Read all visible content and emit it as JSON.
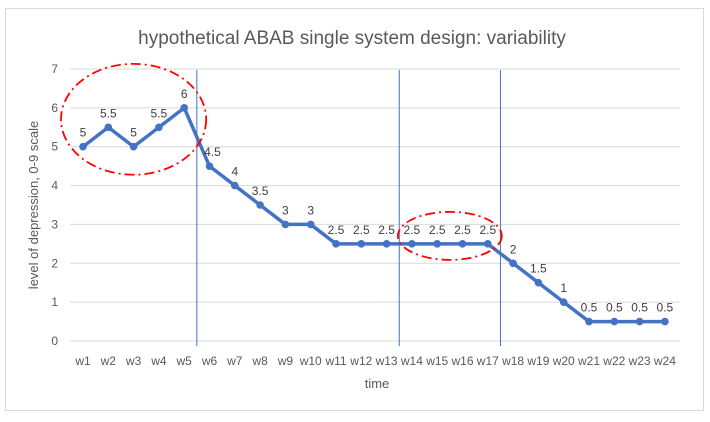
{
  "chart_data": {
    "type": "line",
    "title": "hypothetical ABAB single system design: variability",
    "xlabel": "time",
    "ylabel": "level of depression, 0-9 scale",
    "ylim": [
      0,
      7
    ],
    "yticks": [
      "0",
      "1",
      "2",
      "3",
      "4",
      "5",
      "6",
      "7"
    ],
    "grid": true,
    "categories": [
      "w1",
      "w2",
      "w3",
      "w4",
      "w5",
      "w6",
      "w7",
      "w8",
      "w9",
      "w10",
      "w11",
      "w12",
      "w13",
      "w14",
      "w15",
      "w16",
      "w17",
      "w18",
      "w19",
      "w20",
      "w21",
      "w22",
      "w23",
      "w24"
    ],
    "values": [
      5,
      5.5,
      5,
      5.5,
      6,
      4.5,
      4,
      3.5,
      3,
      3,
      2.5,
      2.5,
      2.5,
      2.5,
      2.5,
      2.5,
      2.5,
      2,
      1.5,
      1,
      0.5,
      0.5,
      0.5,
      0.5
    ],
    "phase_lines_between": [
      [
        "w5",
        "w6"
      ],
      [
        "w13",
        "w14"
      ],
      [
        "w17",
        "w18"
      ]
    ],
    "highlight_ellipses": [
      [
        "w1",
        "w5"
      ],
      [
        "w14",
        "w17"
      ]
    ],
    "colors": {
      "series": "#4472c4",
      "phase_line": "#4472c4",
      "highlight": "#ff0000",
      "grid": "#d9d9d9"
    }
  }
}
